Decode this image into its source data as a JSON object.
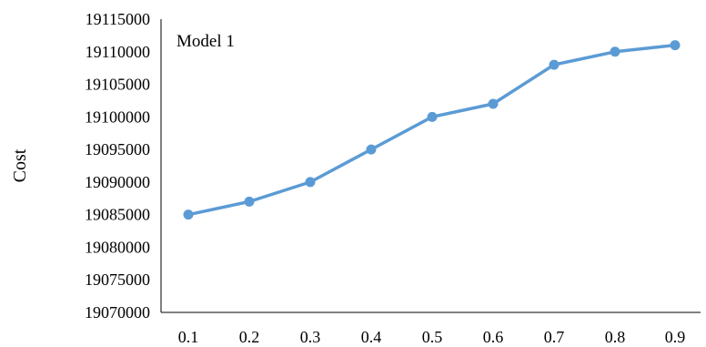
{
  "chart_data": {
    "type": "line",
    "title": "",
    "xlabel": "",
    "ylabel": "Cost",
    "annotation": "Model 1",
    "x": [
      0.1,
      0.2,
      0.3,
      0.4,
      0.5,
      0.6,
      0.7,
      0.8,
      0.9
    ],
    "x_tick_labels": [
      "0.1",
      "0.2",
      "0.3",
      "0.4",
      "0.5",
      "0.6",
      "0.7",
      "0.8",
      "0.9"
    ],
    "y_ticks": [
      19070000,
      19075000,
      19080000,
      19085000,
      19090000,
      19095000,
      19100000,
      19105000,
      19110000,
      19115000
    ],
    "y_tick_labels": [
      "19070000",
      "19075000",
      "19080000",
      "19085000",
      "19090000",
      "19095000",
      "19100000",
      "19105000",
      "19110000",
      "19115000"
    ],
    "ylim": [
      19070000,
      19115000
    ],
    "series": [
      {
        "values": [
          19085000,
          19087000,
          19090000,
          19095000,
          19100000,
          19102000,
          19108000,
          19110000,
          19111000
        ],
        "color": "#5b9bd5"
      }
    ],
    "grid": false,
    "legend": "none",
    "axis_color": "#000000"
  }
}
